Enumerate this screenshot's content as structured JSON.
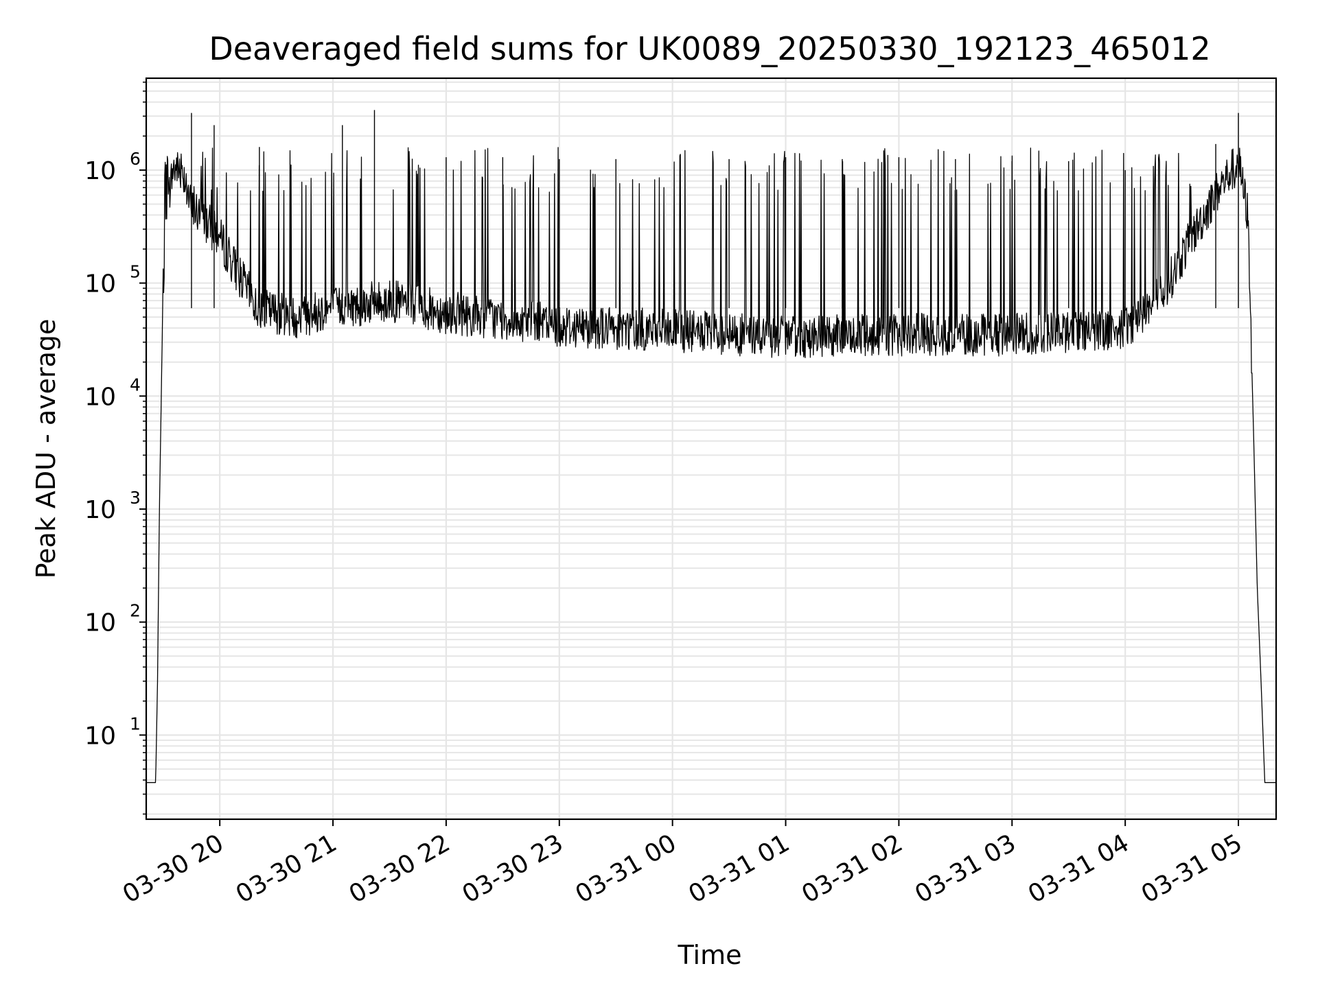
{
  "chart_data": {
    "type": "line",
    "title": "Deaveraged field sums for UK0089_20250330_192123_465012",
    "xlabel": "Time",
    "ylabel": "Peak ADU - average",
    "yscale": "log",
    "ylim": [
      1.8,
      6500000
    ],
    "xlim": [
      "2025-03-30 19:21",
      "2025-03-31 05:20"
    ],
    "grid": true,
    "line_color": "#000000",
    "grid_color": "#e6e6e6",
    "x_ticks": [
      {
        "label": "03-30 20",
        "value": "2025-03-30 20:00"
      },
      {
        "label": "03-30 21",
        "value": "2025-03-30 21:00"
      },
      {
        "label": "03-30 22",
        "value": "2025-03-30 22:00"
      },
      {
        "label": "03-30 23",
        "value": "2025-03-30 23:00"
      },
      {
        "label": "03-31 00",
        "value": "2025-03-31 00:00"
      },
      {
        "label": "03-31 01",
        "value": "2025-03-31 01:00"
      },
      {
        "label": "03-31 02",
        "value": "2025-03-31 02:00"
      },
      {
        "label": "03-31 03",
        "value": "2025-03-31 03:00"
      },
      {
        "label": "03-31 04",
        "value": "2025-03-31 04:00"
      },
      {
        "label": "03-31 05",
        "value": "2025-03-31 05:00"
      }
    ],
    "y_ticks": [
      {
        "base": "10",
        "exp": "1",
        "value": 10
      },
      {
        "base": "10",
        "exp": "2",
        "value": 100
      },
      {
        "base": "10",
        "exp": "3",
        "value": 1000
      },
      {
        "base": "10",
        "exp": "4",
        "value": 10000
      },
      {
        "base": "10",
        "exp": "5",
        "value": 100000
      },
      {
        "base": "10",
        "exp": "6",
        "value": 1000000
      }
    ],
    "series": [
      {
        "points": [
          [
            "2025-03-30 19:21",
            3.8
          ],
          [
            "2025-03-30 19:26",
            3.8
          ],
          [
            "2025-03-30 19:27",
            30
          ],
          [
            "2025-03-30 19:28",
            1000
          ],
          [
            "2025-03-30 19:30",
            100000
          ],
          [
            "2025-03-30 19:32",
            400000
          ],
          [
            "2025-03-30 19:35",
            1000000
          ],
          [
            "2025-03-30 19:40",
            1100000
          ],
          [
            "2025-03-30 19:45",
            450000
          ],
          [
            "2025-03-30 19:50",
            400000
          ],
          [
            "2025-03-30 20:00",
            250000
          ],
          [
            "2025-03-30 20:10",
            120000
          ],
          [
            "2025-03-30 20:20",
            60000
          ],
          [
            "2025-03-30 20:40",
            50000
          ],
          [
            "2025-03-30 21:00",
            60000
          ],
          [
            "2025-03-30 21:30",
            70000
          ],
          [
            "2025-03-30 22:00",
            55000
          ],
          [
            "2025-03-30 23:00",
            42000
          ],
          [
            "2025-03-31 00:00",
            38000
          ],
          [
            "2025-03-31 01:00",
            33000
          ],
          [
            "2025-03-31 02:00",
            35000
          ],
          [
            "2025-03-31 03:00",
            35000
          ],
          [
            "2025-03-31 04:00",
            40000
          ],
          [
            "2025-03-31 04:20",
            80000
          ],
          [
            "2025-03-31 04:35",
            250000
          ],
          [
            "2025-03-31 04:50",
            700000
          ],
          [
            "2025-03-31 05:00",
            1200000
          ],
          [
            "2025-03-31 05:05",
            400000
          ],
          [
            "2025-03-31 05:08",
            5000
          ],
          [
            "2025-03-31 05:10",
            200
          ],
          [
            "2025-03-31 05:12",
            30
          ],
          [
            "2025-03-31 05:14",
            3.8
          ],
          [
            "2025-03-31 05:20",
            3.8
          ]
        ],
        "spikes": [
          [
            "2025-03-30 19:45",
            3200000
          ],
          [
            "2025-03-30 19:57",
            2500000
          ],
          [
            "2025-03-30 20:21",
            1600000
          ],
          [
            "2025-03-30 21:05",
            2500000
          ],
          [
            "2025-03-30 21:22",
            3400000
          ],
          [
            "2025-03-30 22:00",
            1300000
          ],
          [
            "2025-03-30 22:30",
            1300000
          ],
          [
            "2025-03-30 23:00",
            1250000
          ],
          [
            "2025-03-30 23:30",
            1250000
          ],
          [
            "2025-03-31 00:30",
            1250000
          ],
          [
            "2025-03-31 01:00",
            1300000
          ],
          [
            "2025-03-31 01:30",
            1250000
          ],
          [
            "2025-03-31 02:00",
            1300000
          ],
          [
            "2025-03-31 02:30",
            1250000
          ],
          [
            "2025-03-31 03:00",
            1200000
          ],
          [
            "2025-03-31 03:30",
            1200000
          ],
          [
            "2025-03-31 04:00",
            1000000
          ],
          [
            "2025-03-31 04:48",
            1700000
          ],
          [
            "2025-03-31 05:00",
            3200000
          ]
        ]
      }
    ]
  }
}
